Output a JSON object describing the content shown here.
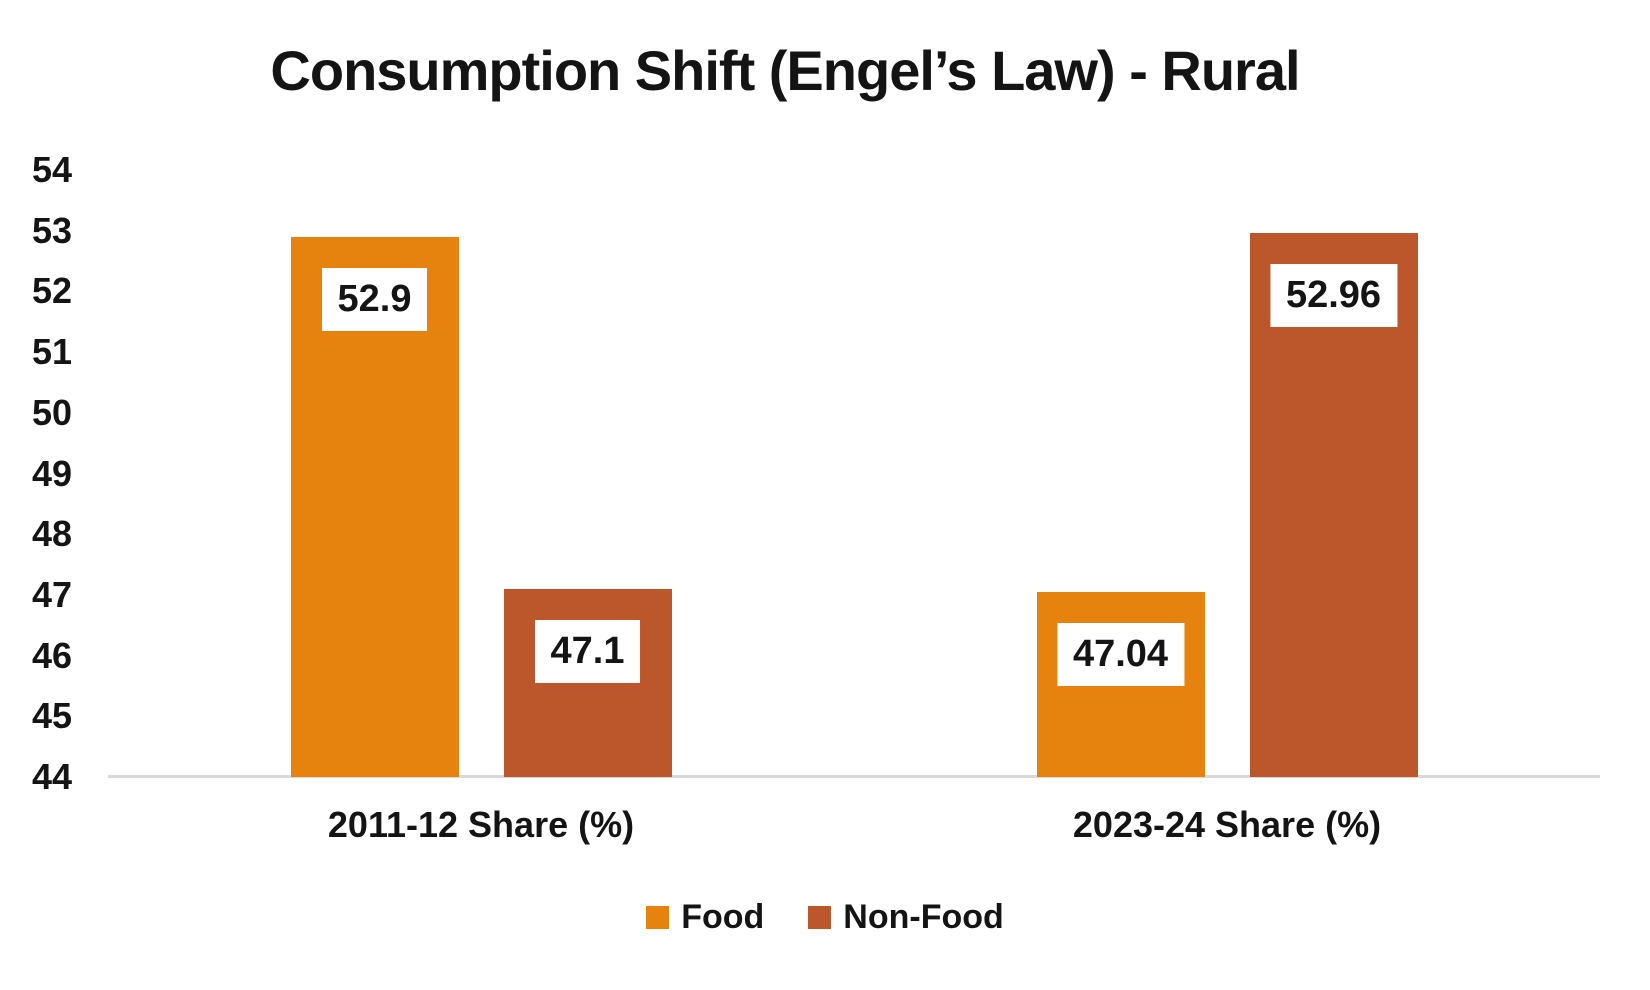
{
  "chart_data": {
    "type": "bar",
    "title": "Consumption Shift (Engel’s Law) - Rural",
    "categories": [
      "2011-12 Share (%)",
      "2023-24 Share (%)"
    ],
    "series": [
      {
        "name": "Food",
        "color": "#E5830E",
        "values": [
          52.9,
          47.04
        ],
        "data_labels": [
          "52.9",
          "47.04"
        ]
      },
      {
        "name": "Non-Food",
        "color": "#BB572B",
        "values": [
          47.1,
          52.96
        ],
        "data_labels": [
          "47.1",
          "52.96"
        ]
      }
    ],
    "y_axis": {
      "min": 44,
      "max": 54,
      "step": 1,
      "tick_labels": [
        "44",
        "45",
        "46",
        "47",
        "48",
        "49",
        "50",
        "51",
        "52",
        "53",
        "54"
      ]
    },
    "x_axis": {
      "line_color": "#D9D9D9"
    },
    "legend": {
      "position": "bottom",
      "entries": [
        "Food",
        "Non-Food"
      ]
    },
    "gridlines": false,
    "data_label_style": {
      "background": "#FFFFFF",
      "text_color": "#141414"
    }
  }
}
